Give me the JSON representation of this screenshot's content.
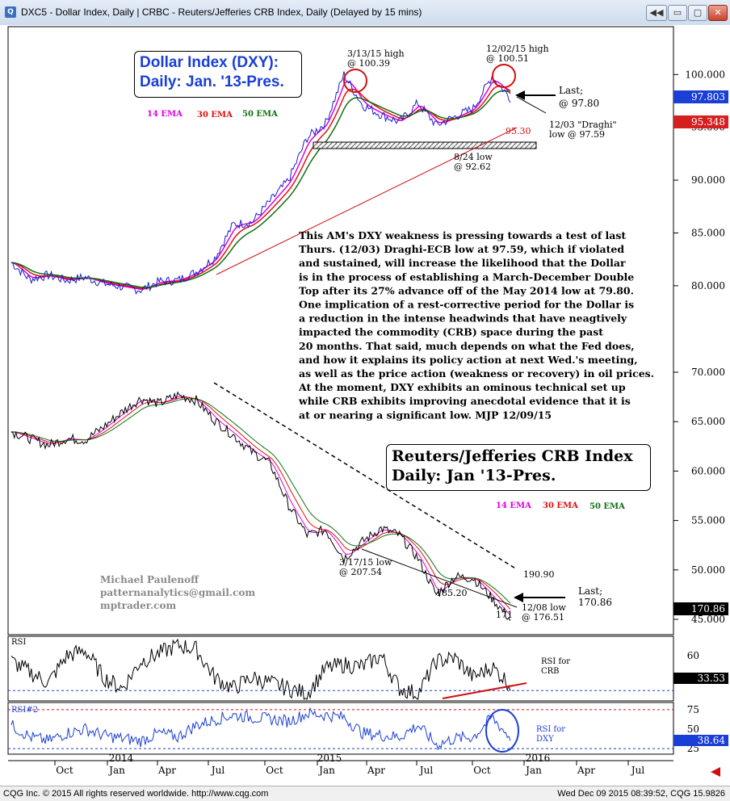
{
  "window": {
    "title": "DXC5 - Dollar Index, Daily  |  CRBC - Reuters/Jefferies CRB Index, Daily (Delayed by 15 mins)",
    "icon": "cqg-app-icon",
    "buttons": {
      "back": "◀◀",
      "minimize": "▭",
      "restore": "▢",
      "close": "✕"
    }
  },
  "footer": {
    "left": "CQG Inc. © 2015 All rights reserved worldwide. http://www.cqg.com",
    "right": "Wed Dec 09 2015 08:39:52, CQG 15.9826"
  },
  "colors": {
    "ema14": "#e000e0",
    "ema30": "#e01010",
    "ema50": "#107010",
    "price_box": "#1a3fd6",
    "ema_box": "#d62020",
    "title_blue": "#1a3fd6"
  },
  "chart_data": [
    {
      "id": "dxy",
      "type": "line",
      "title": [
        "Dollar Index (DXY):",
        "Daily: Jan. '13-Pres."
      ],
      "legend": [
        "14 EMA",
        "30 EMA",
        "50 EMA"
      ],
      "ylim": [
        78,
        104
      ],
      "y_ticks": [
        "100.000",
        "95.000",
        "90.000",
        "85.000",
        "80.000"
      ],
      "x": [
        "2013-09",
        "2013-10",
        "2013-11",
        "2013-12",
        "2014-01",
        "2014-02",
        "2014-03",
        "2014-04",
        "2014-05",
        "2014-06",
        "2014-07",
        "2014-08",
        "2014-09",
        "2014-10",
        "2014-11",
        "2014-12",
        "2015-01",
        "2015-02",
        "2015-03",
        "2015-04",
        "2015-05",
        "2015-06",
        "2015-07",
        "2015-08",
        "2015-09",
        "2015-10",
        "2015-11",
        "2015-12"
      ],
      "values": [
        82.2,
        80.6,
        81.0,
        80.5,
        80.8,
        80.2,
        79.9,
        79.6,
        80.4,
        80.5,
        81.3,
        82.6,
        85.8,
        86.0,
        88.0,
        90.0,
        94.0,
        95.4,
        100.0,
        97.1,
        96.2,
        95.5,
        97.3,
        95.2,
        96.0,
        96.8,
        99.8,
        97.8
      ],
      "last_price": "97.803",
      "ema_value": "95.348",
      "annotations": {
        "high_mar": [
          "3/13/15 high",
          "@ 100.39"
        ],
        "high_dec": [
          "12/02/15 high",
          "@ 100.51"
        ],
        "last": [
          "Last;",
          "@ 97.80"
        ],
        "draghi": [
          "12/03 \"Draghi\"",
          "low @ 97.59"
        ],
        "trend_value": "95.30",
        "low_aug": [
          "8/24 low",
          "@ 92.62"
        ]
      }
    },
    {
      "id": "crb",
      "type": "line",
      "title": [
        "Reuters/Jefferies CRB Index",
        "Daily: Jan '13-Pres."
      ],
      "legend": [
        "14 EMA",
        "30 EMA",
        "50 EMA"
      ],
      "ylim": [
        165,
        330
      ],
      "y_ticks": [
        "70.000",
        "65.000",
        "60.000",
        "55.000",
        "50.000",
        "45.000"
      ],
      "x": [
        "2013-09",
        "2013-10",
        "2013-11",
        "2013-12",
        "2014-01",
        "2014-02",
        "2014-03",
        "2014-04",
        "2014-05",
        "2014-06",
        "2014-07",
        "2014-08",
        "2014-09",
        "2014-10",
        "2014-11",
        "2014-12",
        "2015-01",
        "2015-02",
        "2015-03",
        "2015-04",
        "2015-05",
        "2015-06",
        "2015-07",
        "2015-08",
        "2015-09",
        "2015-10",
        "2015-11",
        "2015-12"
      ],
      "values": [
        284,
        280,
        276,
        280,
        279,
        287,
        296,
        304,
        301,
        306,
        303,
        291,
        282,
        272,
        265,
        240,
        222,
        225,
        208,
        218,
        226,
        222,
        208,
        186,
        197,
        196,
        184,
        171
      ],
      "last_price": "170.86",
      "annotations": {
        "low_mar": [
          "3/17/15 low",
          "@ 207.54"
        ],
        "trend_upper": "190.90",
        "low_aug": "185.20",
        "last": [
          "Last;",
          "170.86"
        ],
        "trend_lower": "171",
        "low_dec": [
          "12/08 low",
          "@ 176.51"
        ]
      },
      "author": [
        "Michael Paulenoff",
        "patternanalytics@gmail.com",
        "mptrader.com"
      ]
    },
    {
      "id": "rsi1",
      "type": "line",
      "label": "RSI",
      "ylim": [
        20,
        75
      ],
      "y_ticks": [
        "60",
        "40"
      ],
      "values": [
        55,
        45,
        35,
        60,
        65,
        40,
        30,
        55,
        62,
        70,
        66,
        40,
        30,
        40,
        35,
        30,
        25,
        48,
        52,
        50,
        60,
        30,
        25,
        55,
        58,
        40,
        50,
        33.53
      ],
      "last": "33.53",
      "note": [
        "RSI for",
        "CRB"
      ]
    },
    {
      "id": "rsi2",
      "type": "line",
      "label": "RSI#2",
      "ylim": [
        20,
        80
      ],
      "y_ticks": [
        "75",
        "50",
        "25"
      ],
      "values": [
        55,
        40,
        35,
        45,
        50,
        42,
        38,
        35,
        45,
        40,
        55,
        62,
        68,
        65,
        63,
        60,
        70,
        68,
        65,
        45,
        42,
        40,
        55,
        30,
        38,
        40,
        65,
        38.64
      ],
      "last": "38.64",
      "note": [
        "RSI for",
        "DXY"
      ]
    }
  ],
  "x_axis_labels": [
    "Oct",
    "Jan",
    "Apr",
    "Jul",
    "Oct",
    "Jan",
    "Apr",
    "Jul",
    "Oct",
    "Jan",
    "Apr",
    "Jul"
  ],
  "x_axis_years": [
    "2014",
    "2015",
    "2016"
  ],
  "commentary": [
    "This AM's DXY weakness is pressing towards a test of last",
    "Thurs. (12/03) Draghi-ECB low at 97.59, which if violated",
    "and sustained, will increase the likelihood that the Dollar",
    "is in the process of establishing a March-December Double",
    "Top after its 27% advance off of the May 2014 low at 79.80.",
    "One implication of a rest-corrective period for the Dollar is",
    "a reduction in the intense headwinds that have neagtively",
    "impacted the commodity (CRB) space during the past",
    "20 months. That said, much depends on what the Fed does,",
    "and how it explains its policy action at next Wed.'s meeting,",
    "as well as the price action (weakness or recovery) in oil prices.",
    "At the moment, DXY exhibits an ominous technical set up",
    "while CRB exhibits improving anecdotal evidence that it is",
    "at or nearing a significant low.  MJP  12/09/15"
  ]
}
